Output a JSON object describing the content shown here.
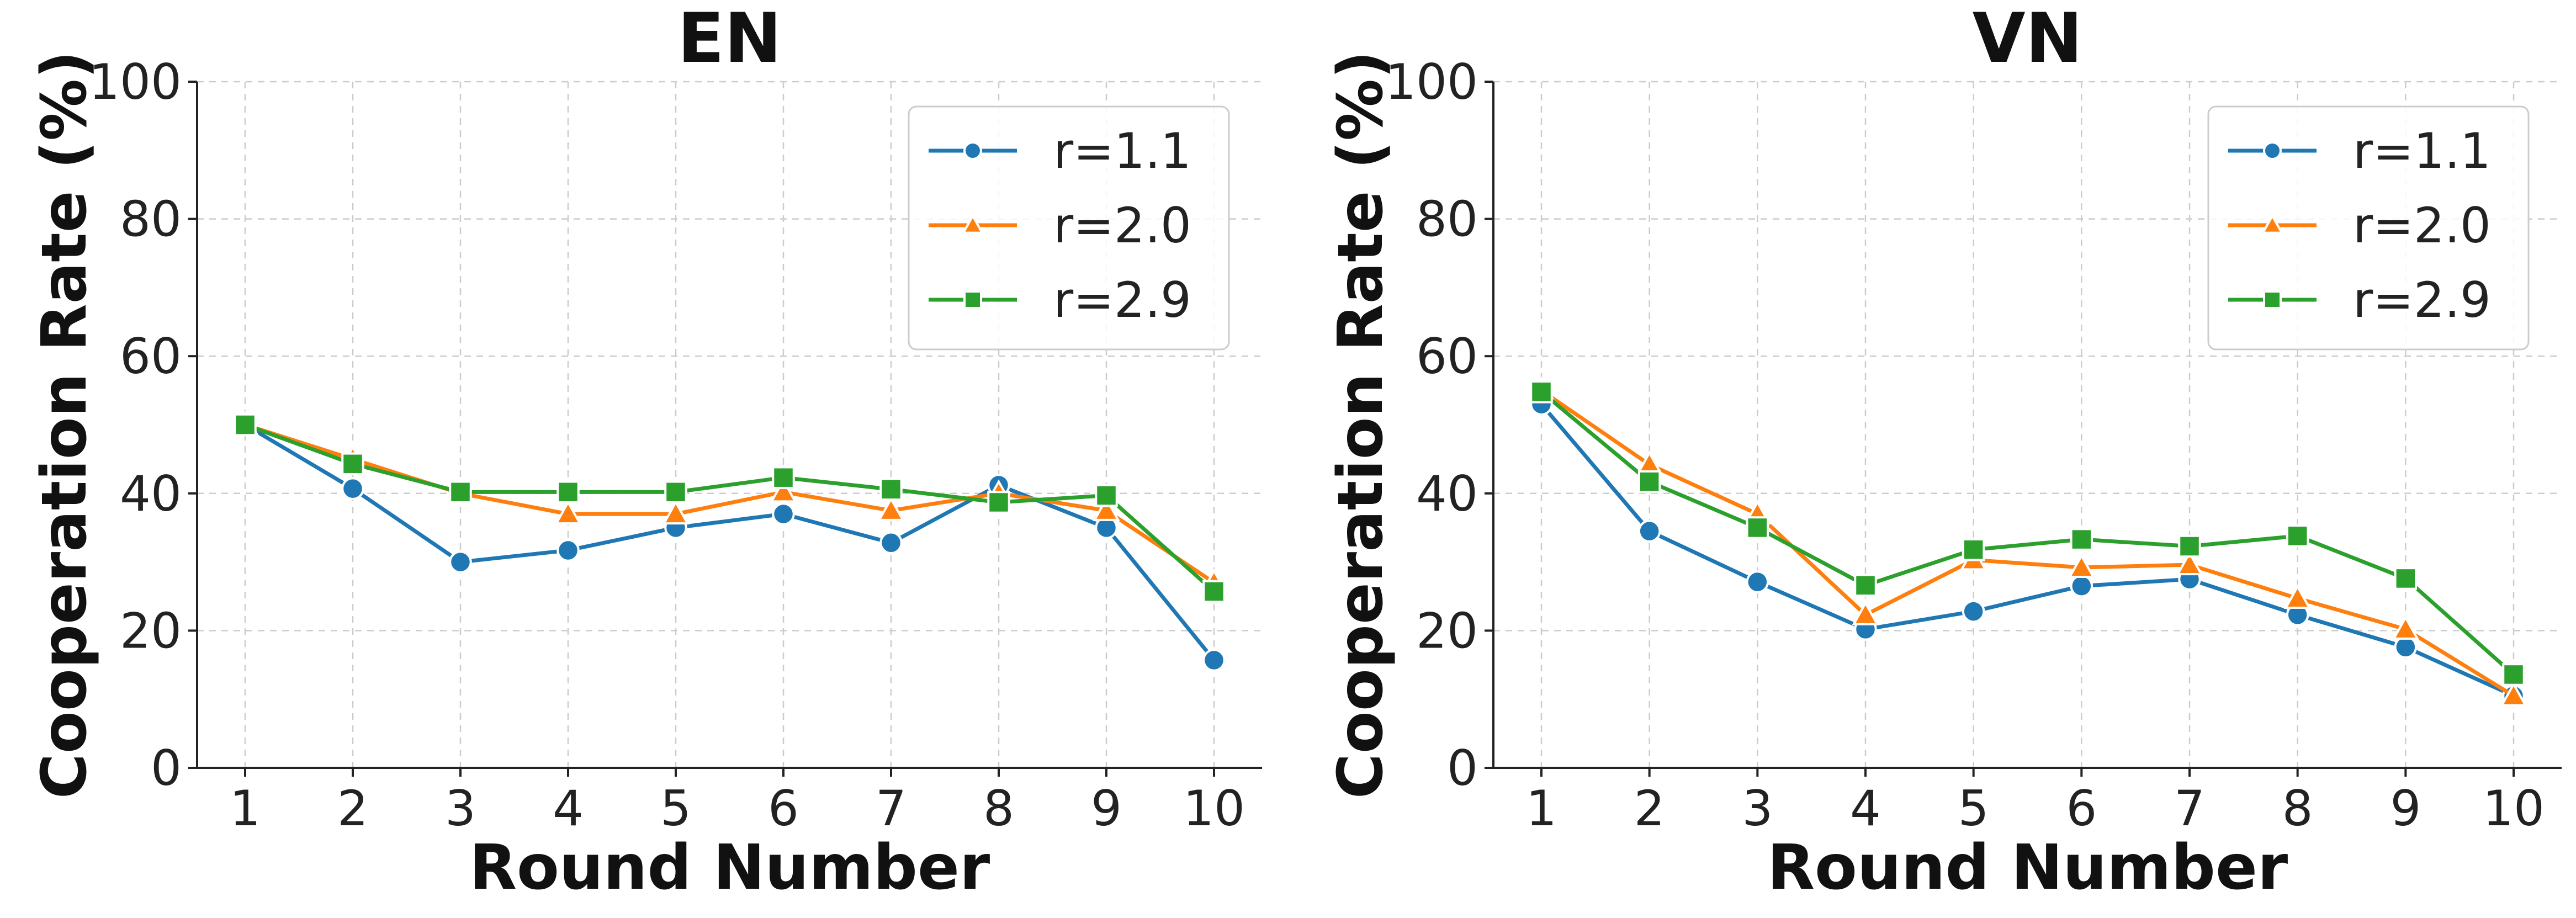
{
  "chart_data": [
    {
      "type": "line",
      "title": "EN",
      "xlabel": "Round Number",
      "ylabel": "Cooperation Rate (%)",
      "x": [
        1,
        2,
        3,
        4,
        5,
        6,
        7,
        8,
        9,
        10
      ],
      "xticks": [
        "1",
        "2",
        "3",
        "4",
        "5",
        "6",
        "7",
        "8",
        "9",
        "10"
      ],
      "ylim": [
        0,
        100
      ],
      "yticks": [
        "0",
        "20",
        "40",
        "60",
        "80",
        "100"
      ],
      "grid": true,
      "legend_position": "top-right",
      "series": [
        {
          "name": "r=1.1",
          "color": "#1f77b4",
          "marker": "circle",
          "values": [
            50.0,
            40.7,
            30.0,
            31.7,
            35.0,
            37.0,
            32.8,
            41.2,
            35.0,
            15.7
          ]
        },
        {
          "name": "r=2.0",
          "color": "#ff7f0e",
          "marker": "triangle",
          "values": [
            50.0,
            45.0,
            40.0,
            37.0,
            37.0,
            40.2,
            37.5,
            40.0,
            37.5,
            27.0
          ]
        },
        {
          "name": "r=2.9",
          "color": "#2ca02c",
          "marker": "square",
          "values": [
            50.0,
            44.3,
            40.2,
            40.2,
            40.2,
            42.3,
            40.6,
            38.7,
            39.7,
            25.7
          ]
        }
      ]
    },
    {
      "type": "line",
      "title": "VN",
      "xlabel": "Round Number",
      "ylabel": "Cooperation Rate (%)",
      "x": [
        1,
        2,
        3,
        4,
        5,
        6,
        7,
        8,
        9,
        10
      ],
      "xticks": [
        "1",
        "2",
        "3",
        "4",
        "5",
        "6",
        "7",
        "8",
        "9",
        "10"
      ],
      "ylim": [
        0,
        100
      ],
      "yticks": [
        "0",
        "20",
        "40",
        "60",
        "80",
        "100"
      ],
      "grid": true,
      "legend_position": "top-right",
      "series": [
        {
          "name": "r=1.1",
          "color": "#1f77b4",
          "marker": "circle",
          "values": [
            53.0,
            34.5,
            27.1,
            20.2,
            22.8,
            26.5,
            27.5,
            22.3,
            17.6,
            10.5
          ]
        },
        {
          "name": "r=2.0",
          "color": "#ff7f0e",
          "marker": "triangle",
          "values": [
            55.0,
            44.2,
            37.0,
            22.3,
            30.3,
            29.2,
            29.6,
            24.7,
            20.2,
            10.5
          ]
        },
        {
          "name": "r=2.9",
          "color": "#2ca02c",
          "marker": "square",
          "values": [
            54.8,
            41.7,
            35.0,
            26.6,
            31.8,
            33.3,
            32.3,
            33.8,
            27.6,
            13.6
          ]
        }
      ]
    }
  ]
}
